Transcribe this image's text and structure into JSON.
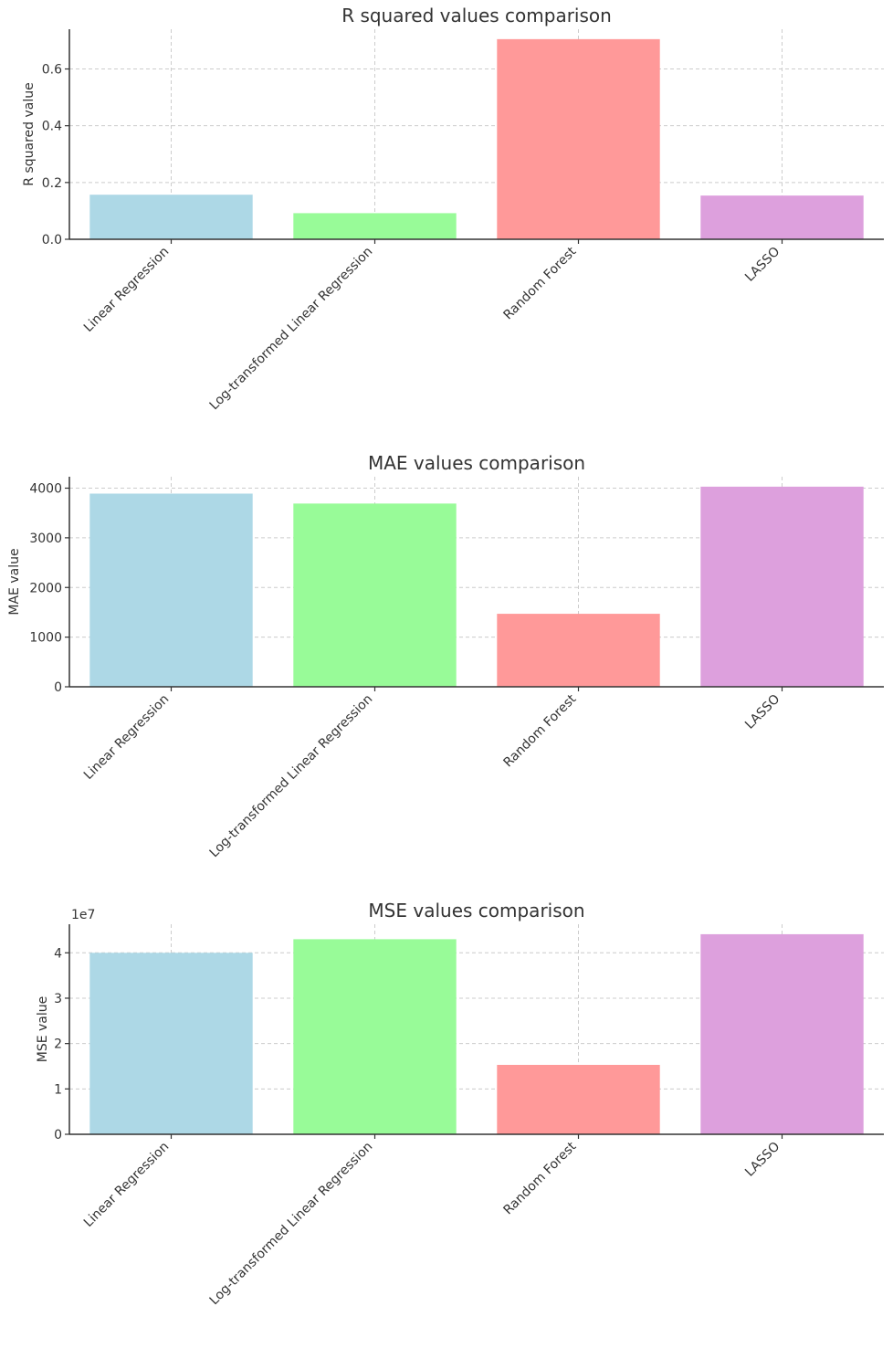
{
  "chart_data": [
    {
      "type": "bar",
      "title": "R squared values comparison",
      "ylabel": "R squared value",
      "categories": [
        "Linear Regression",
        "Log-transformed Linear Regression",
        "Random Forest",
        "LASSO"
      ],
      "values": [
        0.157,
        0.092,
        0.705,
        0.154
      ],
      "ylim": [
        0,
        0.74
      ],
      "yticks": [
        0.0,
        0.2,
        0.4,
        0.6
      ],
      "ytick_labels": [
        "0.0",
        "0.2",
        "0.4",
        "0.6"
      ],
      "offset_label": "",
      "grid": true,
      "colors": [
        "#add8e6",
        "#98fb98",
        "#ff9999",
        "#dda0dd"
      ]
    },
    {
      "type": "bar",
      "title": "MAE values comparison",
      "ylabel": "MAE value",
      "categories": [
        "Linear Regression",
        "Log-transformed Linear Regression",
        "Random Forest",
        "LASSO"
      ],
      "values": [
        3890,
        3690,
        1470,
        4030
      ],
      "ylim": [
        0,
        4230
      ],
      "yticks": [
        0,
        1000,
        2000,
        3000,
        4000
      ],
      "ytick_labels": [
        "0",
        "1000",
        "2000",
        "3000",
        "4000"
      ],
      "offset_label": "",
      "grid": true,
      "colors": [
        "#add8e6",
        "#98fb98",
        "#ff9999",
        "#dda0dd"
      ]
    },
    {
      "type": "bar",
      "title": "MSE values comparison",
      "ylabel": "MSE value",
      "categories": [
        "Linear Regression",
        "Log-transformed Linear Regression",
        "Random Forest",
        "LASSO"
      ],
      "values": [
        40000000,
        43000000,
        15300000,
        44100000
      ],
      "ylim": [
        0,
        46300000
      ],
      "yticks": [
        0,
        10000000,
        20000000,
        30000000,
        40000000
      ],
      "ytick_labels": [
        "0",
        "1",
        "2",
        "3",
        "4"
      ],
      "offset_label": "1e7",
      "grid": true,
      "colors": [
        "#add8e6",
        "#98fb98",
        "#ff9999",
        "#dda0dd"
      ]
    }
  ]
}
